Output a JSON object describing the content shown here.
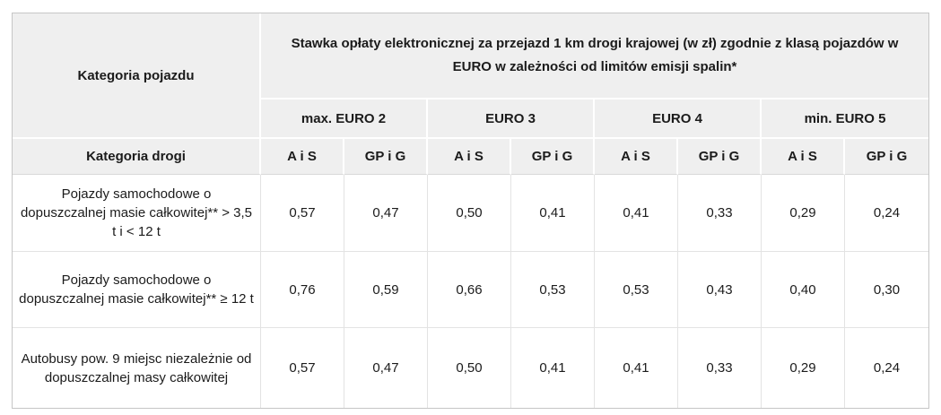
{
  "table": {
    "header": {
      "vehicle_category": "Kategoria pojazdu",
      "rate_title": "Stawka opłaty elektronicznej za przejazd 1 km drogi krajowej (w zł) zgodnie z klasą pojazdów w EURO w zależności od limitów emisji spalin*",
      "euro_classes": [
        "max. EURO 2",
        "EURO 3",
        "EURO 4",
        "min. EURO 5"
      ],
      "road_category": "Kategoria drogi",
      "road_types": [
        "A i S",
        "GP i G",
        "A i S",
        "GP i G",
        "A i S",
        "GP i G",
        "A i S",
        "GP i G"
      ]
    },
    "rows": [
      {
        "label": "Pojazdy samochodowe o dopuszczalnej masie całkowitej** > 3,5 t i < 12 t",
        "values": [
          "0,57",
          "0,47",
          "0,50",
          "0,41",
          "0,41",
          "0,33",
          "0,29",
          "0,24"
        ]
      },
      {
        "label": "Pojazdy samochodowe o dopuszczalnej masie całkowitej** ≥ 12 t",
        "values": [
          "0,76",
          "0,59",
          "0,66",
          "0,53",
          "0,53",
          "0,43",
          "0,40",
          "0,30"
        ]
      },
      {
        "label": "Autobusy pow. 9 miejsc niezależnie od dopuszczalnej masy całkowitej",
        "values": [
          "0,57",
          "0,47",
          "0,50",
          "0,41",
          "0,41",
          "0,33",
          "0,29",
          "0,24"
        ]
      }
    ],
    "colors": {
      "header_bg": "#efefef",
      "header_divider": "#ffffff",
      "body_border": "#e3e3e3",
      "outer_border": "#c6c6c6",
      "text": "#1b1b1b"
    }
  }
}
